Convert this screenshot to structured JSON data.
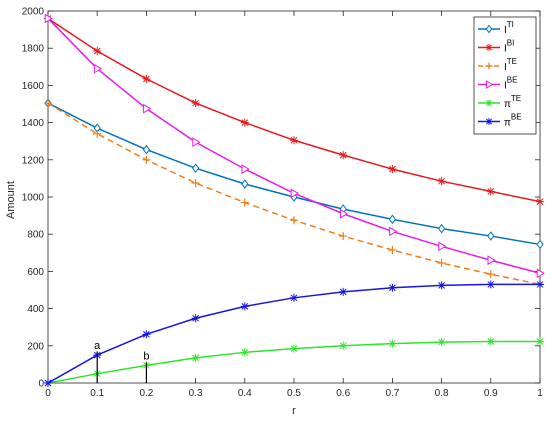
{
  "chart_data": {
    "type": "line",
    "xlabel": "r",
    "ylabel": "Amount",
    "xlim": [
      0,
      1
    ],
    "ylim": [
      0,
      2000
    ],
    "xticks": [
      "0",
      "0.1",
      "0.2",
      "0.3",
      "0.4",
      "0.5",
      "0.6",
      "0.7",
      "0.8",
      "0.9",
      "1"
    ],
    "yticks": [
      "0",
      "200",
      "400",
      "600",
      "800",
      "1000",
      "1200",
      "1400",
      "1600",
      "1800",
      "2000"
    ],
    "grid": false,
    "legend_position": "top-right",
    "x": [
      0,
      0.1,
      0.2,
      0.3,
      0.4,
      0.5,
      0.6,
      0.7,
      0.8,
      0.9,
      1.0
    ],
    "series": [
      {
        "name": "I",
        "sup": "TI",
        "color": "#0072BD",
        "dash": "solid",
        "marker": "diamond",
        "values": [
          1505,
          1370,
          1255,
          1155,
          1070,
          1000,
          935,
          880,
          830,
          790,
          745
        ]
      },
      {
        "name": "I",
        "sup": "BI",
        "color": "#E41A1C",
        "dash": "solid",
        "marker": "star",
        "values": [
          1960,
          1785,
          1635,
          1505,
          1400,
          1305,
          1225,
          1150,
          1085,
          1030,
          975
        ]
      },
      {
        "name": "I",
        "sup": "TE",
        "color": "#F07F1A",
        "dash": "dashed",
        "marker": "plus",
        "values": [
          1505,
          1340,
          1200,
          1075,
          970,
          875,
          790,
          715,
          645,
          585,
          530
        ]
      },
      {
        "name": "I",
        "sup": "BE",
        "color": "#E61DE6",
        "dash": "solid",
        "marker": "triangle-right",
        "values": [
          1960,
          1690,
          1475,
          1295,
          1150,
          1020,
          910,
          815,
          735,
          660,
          590
        ]
      },
      {
        "name": "π",
        "sup": "TE",
        "color": "#2BE62B",
        "dash": "solid",
        "marker": "star",
        "values": [
          0,
          50,
          95,
          135,
          165,
          185,
          200,
          212,
          220,
          223,
          223
        ]
      },
      {
        "name": "π",
        "sup": "BE",
        "color": "#1515E6",
        "dash": "solid",
        "marker": "star",
        "values": [
          0,
          150,
          262,
          348,
          412,
          458,
          490,
          512,
          525,
          530,
          530
        ]
      }
    ],
    "annotations": [
      {
        "text": "a",
        "x": 0.1,
        "y": 150
      },
      {
        "text": "b",
        "x": 0.2,
        "y": 95
      }
    ]
  }
}
